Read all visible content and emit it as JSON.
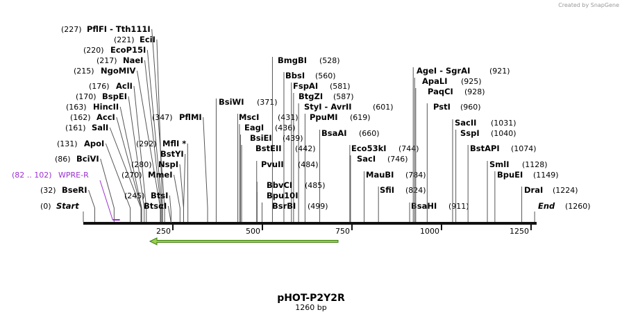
{
  "watermark": "Created by SnapGene",
  "title": "pHOT-P2Y2R",
  "length": "1260 bp",
  "ruler": {
    "ticks": [
      250,
      500,
      750,
      1000,
      1250
    ]
  },
  "ends": [
    {
      "position": "(0)",
      "name": "Start"
    },
    {
      "position": "(1260)",
      "name": "End"
    }
  ],
  "features": [
    {
      "position": "(82 .. 102)",
      "name": "WPRE-R"
    }
  ],
  "enzymes": [
    {
      "position": "(227)",
      "names": [
        "PflFI - Tth111I"
      ]
    },
    {
      "position": "(221)",
      "names": [
        "EciI"
      ]
    },
    {
      "position": "(220)",
      "names": [
        "EcoP15I"
      ]
    },
    {
      "position": "(217)",
      "names": [
        "NaeI"
      ]
    },
    {
      "position": "(215)",
      "names": [
        "NgoMIV"
      ]
    },
    {
      "position": "(176)",
      "names": [
        "AclI"
      ]
    },
    {
      "position": "(170)",
      "names": [
        "BspEI"
      ]
    },
    {
      "position": "(163)",
      "names": [
        "HincII"
      ]
    },
    {
      "position": "(162)",
      "names": [
        "AccI"
      ]
    },
    {
      "position": "(161)",
      "names": [
        "SalI"
      ]
    },
    {
      "position": "(131)",
      "names": [
        "ApoI"
      ]
    },
    {
      "position": "(86)",
      "names": [
        "BciVI"
      ]
    },
    {
      "position": "(32)",
      "names": [
        "BseRI"
      ]
    },
    {
      "position": "(292)",
      "names": [
        "MflI *"
      ]
    },
    {
      "position": "(280)",
      "names": [
        "BstYI",
        "NspI"
      ]
    },
    {
      "position": "(270)",
      "names": [
        "MmeI"
      ]
    },
    {
      "position": "(245)",
      "names": [
        "BtsI",
        "BtsαI"
      ]
    },
    {
      "position": "(347)",
      "names": [
        "PflMI"
      ]
    },
    {
      "position": "(371)",
      "names": [
        "BsiWI"
      ]
    },
    {
      "position": "(528)",
      "names": [
        "BmgBI"
      ]
    },
    {
      "position": "(560)",
      "names": [
        "BbsI"
      ]
    },
    {
      "position": "(581)",
      "names": [
        "FspAI"
      ]
    },
    {
      "position": "(587)",
      "names": [
        "BtgZI"
      ]
    },
    {
      "position": "(601)",
      "names": [
        "StyI - AvrII"
      ]
    },
    {
      "position": "(619)",
      "names": [
        "PpuMI"
      ]
    },
    {
      "position": "(431)",
      "names": [
        "MscI"
      ]
    },
    {
      "position": "(436)",
      "names": [
        "EagI"
      ]
    },
    {
      "position": "(439)",
      "names": [
        "BsiEI"
      ]
    },
    {
      "position": "(660)",
      "names": [
        "BsaAI"
      ]
    },
    {
      "position": "(442)",
      "names": [
        "BstEII"
      ]
    },
    {
      "position": "(484)",
      "names": [
        "PvuII"
      ]
    },
    {
      "position": "(485)",
      "names": [
        "BbvCI",
        "Bpu10I"
      ]
    },
    {
      "position": "(499)",
      "names": [
        "BsrBI"
      ]
    },
    {
      "position": "(744)",
      "names": [
        "Eco53kI"
      ]
    },
    {
      "position": "(746)",
      "names": [
        "SacI"
      ]
    },
    {
      "position": "(784)",
      "names": [
        "MauBI"
      ]
    },
    {
      "position": "(824)",
      "names": [
        "SfiI"
      ]
    },
    {
      "position": "(911)",
      "names": [
        "BsaHI"
      ]
    },
    {
      "position": "(921)",
      "names": [
        "AgeI - SgrAI"
      ]
    },
    {
      "position": "(925)",
      "names": [
        "ApaLI"
      ]
    },
    {
      "position": "(928)",
      "names": [
        "PaqCI"
      ]
    },
    {
      "position": "(960)",
      "names": [
        "PstI"
      ]
    },
    {
      "position": "(1031)",
      "names": [
        "SacII"
      ]
    },
    {
      "position": "(1040)",
      "names": [
        "SspI"
      ]
    },
    {
      "position": "(1074)",
      "names": [
        "BstAPI"
      ]
    },
    {
      "position": "(1128)",
      "names": [
        "SmlI"
      ]
    },
    {
      "position": "(1149)",
      "names": [
        "BpuEI"
      ]
    },
    {
      "position": "(1224)",
      "names": [
        "DraI"
      ]
    }
  ]
}
